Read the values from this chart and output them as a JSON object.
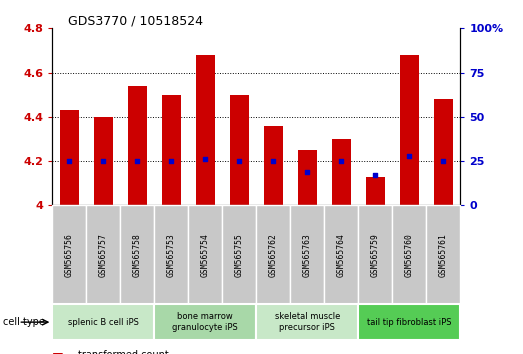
{
  "title": "GDS3770 / 10518524",
  "samples": [
    "GSM565756",
    "GSM565757",
    "GSM565758",
    "GSM565753",
    "GSM565754",
    "GSM565755",
    "GSM565762",
    "GSM565763",
    "GSM565764",
    "GSM565759",
    "GSM565760",
    "GSM565761"
  ],
  "transformed_count": [
    4.43,
    4.4,
    4.54,
    4.5,
    4.68,
    4.5,
    4.36,
    4.25,
    4.3,
    4.13,
    4.68,
    4.48
  ],
  "percentile_rank": [
    25,
    25,
    25,
    25,
    26,
    25,
    25,
    19,
    25,
    17,
    28,
    25
  ],
  "y_min": 4.0,
  "y_max": 4.8,
  "y_ticks": [
    4.0,
    4.2,
    4.4,
    4.6,
    4.8
  ],
  "y2_ticks": [
    0,
    25,
    50,
    75,
    100
  ],
  "cell_type_groups": [
    {
      "label": "splenic B cell iPS",
      "start": 0,
      "end": 3,
      "color": "#c8e8c8"
    },
    {
      "label": "bone marrow\ngranulocyte iPS",
      "start": 3,
      "end": 6,
      "color": "#a8d8a8"
    },
    {
      "label": "skeletal muscle\nprecursor iPS",
      "start": 6,
      "end": 9,
      "color": "#c8e8c8"
    },
    {
      "label": "tail tip fibroblast iPS",
      "start": 9,
      "end": 12,
      "color": "#55cc55"
    }
  ],
  "bar_color": "#cc0000",
  "dot_color": "#0000cc",
  "background_color": "#ffffff",
  "tick_label_color_left": "#cc0000",
  "tick_label_color_right": "#0000cc",
  "grid_color": "#000000",
  "sample_box_color": "#c8c8c8",
  "fig_width": 5.23,
  "fig_height": 3.54,
  "dpi": 100
}
